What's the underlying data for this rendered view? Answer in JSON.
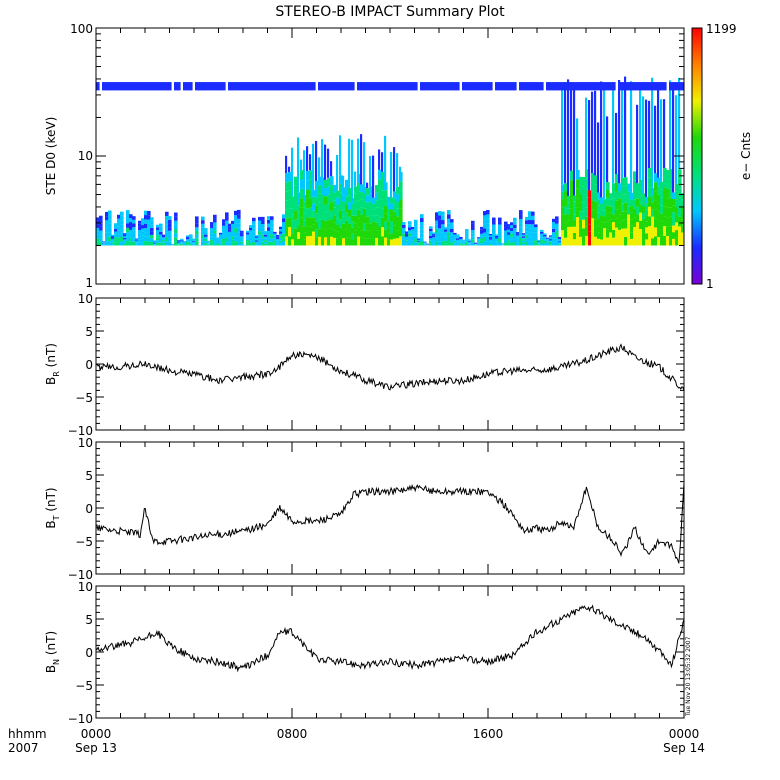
{
  "chart_data": [
    {
      "type": "heatmap",
      "title": "STEREO-B IMPACT Summary Plot",
      "ylabel": "STE D0 (keV)",
      "yscale": "log",
      "ylim": [
        1,
        100
      ],
      "yticks": [
        "1",
        "10",
        "100"
      ],
      "colorbar": {
        "label": "e− Cnts",
        "min": "1",
        "max": "1199",
        "colors": [
          "#7a00d6",
          "#1a2cff",
          "#00c8ff",
          "#00e07a",
          "#1ed80a",
          "#f0f000",
          "#ff8000",
          "#ff0000"
        ]
      },
      "populated_energy_range_keV": [
        2,
        4.5
      ],
      "persistent_band_keV": 35,
      "energetic_intervals": [
        {
          "start_hhmm": "0740",
          "end_hhmm": "1230",
          "upper_keV": 15
        },
        {
          "start_hhmm": "1900",
          "end_hhmm": "2400",
          "upper_keV": 45
        }
      ],
      "intense_spike_hhmm": "2010"
    },
    {
      "type": "line",
      "ylabel_main": "B",
      "ylabel_sub": "R",
      "ylabel_unit": " (nT)",
      "ylim": [
        -10,
        10
      ],
      "yticks": [
        "−10",
        "−5",
        "0",
        "5",
        "10"
      ],
      "x_hours": [
        0,
        1,
        2,
        3,
        4,
        5,
        6,
        7,
        7.5,
        8,
        9,
        10,
        11,
        12,
        13,
        14,
        15,
        16,
        17,
        18,
        19,
        20,
        21,
        21.5,
        22,
        23,
        24
      ],
      "y": [
        -0.5,
        -0.4,
        0,
        -1,
        -1.5,
        -2.5,
        -2,
        -1.5,
        -0.5,
        1.5,
        1,
        -1,
        -2.5,
        -3.5,
        -3,
        -2.5,
        -2.5,
        -1.5,
        -1,
        -1,
        -0.5,
        0.5,
        2,
        2.5,
        1,
        -0.5,
        -4
      ]
    },
    {
      "type": "line",
      "ylabel_main": "B",
      "ylabel_sub": "T",
      "ylabel_unit": " (nT)",
      "ylim": [
        -10,
        10
      ],
      "yticks": [
        "−10",
        "−5",
        "0",
        "5",
        "10"
      ],
      "x_hours": [
        0,
        1,
        1.8,
        2,
        2.3,
        3,
        4,
        5,
        6,
        7,
        7.5,
        8,
        9,
        10,
        10.5,
        11,
        12,
        13,
        14,
        15,
        16,
        16.8,
        17.5,
        18,
        18.5,
        19,
        19.5,
        20,
        20.5,
        21,
        21.5,
        22,
        22.5,
        23,
        23.5,
        23.8,
        24
      ],
      "y": [
        -3,
        -3.5,
        -4,
        0,
        -5,
        -5,
        -4.5,
        -4,
        -3.5,
        -2.5,
        0,
        -2,
        -2,
        -1,
        2,
        2.5,
        2.5,
        3,
        2.5,
        2.5,
        2.5,
        0,
        -3.5,
        -3,
        -3.5,
        -2,
        -3,
        3,
        -3,
        -4.5,
        -7,
        -3,
        -7,
        -5,
        -6,
        -8.5,
        3.5
      ]
    },
    {
      "type": "line",
      "ylabel_main": "B",
      "ylabel_sub": "N",
      "ylabel_unit": " (nT)",
      "ylim": [
        -10,
        10
      ],
      "yticks": [
        "−10",
        "−5",
        "0",
        "5",
        "10"
      ],
      "x_hours": [
        0,
        1,
        2,
        2.5,
        3,
        4,
        5,
        6,
        7,
        7.5,
        8,
        9,
        10,
        11,
        12,
        13,
        14,
        15,
        16,
        17,
        18,
        19,
        20,
        21,
        22,
        22.5,
        23,
        23.5,
        24
      ],
      "y": [
        0.5,
        1,
        2,
        3,
        1,
        -1,
        -1.5,
        -2.5,
        -0.5,
        3,
        3,
        -1,
        -1.5,
        -2,
        -1.5,
        -2,
        -1.5,
        -1,
        -1.5,
        -0.5,
        3,
        5,
        7,
        5,
        3,
        2,
        0,
        -2,
        5
      ]
    },
    {
      "type": "line",
      "xaxis_labels": [
        {
          "top": "0000",
          "bottom": "Sep 13"
        },
        {
          "top": "0800",
          "bottom": ""
        },
        {
          "top": "1600",
          "bottom": ""
        },
        {
          "top": "0000",
          "bottom": "Sep 14"
        }
      ],
      "x_units_label": "hhmm",
      "year_label": "2007"
    }
  ],
  "timestamp": "Tue Nov 20 13:05:32 2007"
}
